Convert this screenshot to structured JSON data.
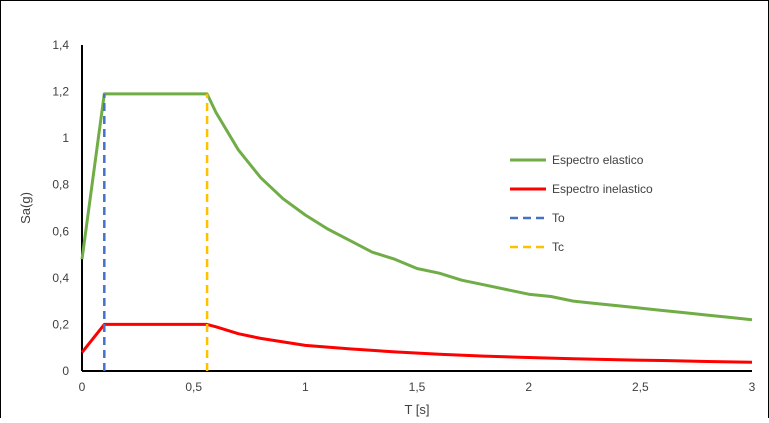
{
  "chart_data": {
    "type": "line",
    "title": "",
    "xlabel": "T [s]",
    "ylabel": "Sa(g)",
    "xlim": [
      0,
      3
    ],
    "ylim": [
      0,
      1.4
    ],
    "x_ticks": [
      "0",
      "0,5",
      "1",
      "1,5",
      "2",
      "2,5",
      "3"
    ],
    "y_ticks": [
      "0",
      "0,2",
      "0,4",
      "0,6",
      "0,8",
      "1",
      "1,2",
      "1,4"
    ],
    "grid": false,
    "legend_position": "right",
    "series": [
      {
        "name": "Espectro elastico",
        "color": "#70ad47",
        "dash": "solid",
        "x": [
          0,
          0.1,
          0.15,
          0.2,
          0.3,
          0.4,
          0.5,
          0.56,
          0.6,
          0.7,
          0.8,
          0.9,
          1.0,
          1.1,
          1.2,
          1.3,
          1.4,
          1.5,
          1.6,
          1.7,
          1.8,
          1.9,
          2.0,
          2.1,
          2.2,
          2.3,
          2.4,
          2.5,
          2.6,
          2.7,
          2.8,
          2.9,
          3.0
        ],
        "y": [
          0.48,
          1.19,
          1.19,
          1.19,
          1.19,
          1.19,
          1.19,
          1.19,
          1.11,
          0.95,
          0.83,
          0.74,
          0.67,
          0.61,
          0.56,
          0.51,
          0.48,
          0.44,
          0.42,
          0.39,
          0.37,
          0.35,
          0.33,
          0.32,
          0.3,
          0.29,
          0.28,
          0.27,
          0.26,
          0.25,
          0.24,
          0.23,
          0.22
        ]
      },
      {
        "name": "Espectro inelastico",
        "color": "#ff0000",
        "dash": "solid",
        "x": [
          0,
          0.1,
          0.2,
          0.3,
          0.4,
          0.5,
          0.56,
          0.6,
          0.7,
          0.8,
          0.9,
          1.0,
          1.2,
          1.4,
          1.6,
          1.8,
          2.0,
          2.2,
          2.4,
          2.6,
          2.8,
          3.0
        ],
        "y": [
          0.08,
          0.2,
          0.2,
          0.2,
          0.2,
          0.2,
          0.2,
          0.19,
          0.16,
          0.14,
          0.125,
          0.11,
          0.095,
          0.082,
          0.072,
          0.064,
          0.058,
          0.053,
          0.048,
          0.045,
          0.041,
          0.038
        ]
      },
      {
        "name": "To",
        "color": "#4472c4",
        "dash": "dashed",
        "x": [
          0.1,
          0.1
        ],
        "y": [
          0,
          1.19
        ]
      },
      {
        "name": "Tc",
        "color": "#ffc000",
        "dash": "dashed",
        "x": [
          0.56,
          0.56
        ],
        "y": [
          0,
          1.19
        ]
      }
    ]
  }
}
